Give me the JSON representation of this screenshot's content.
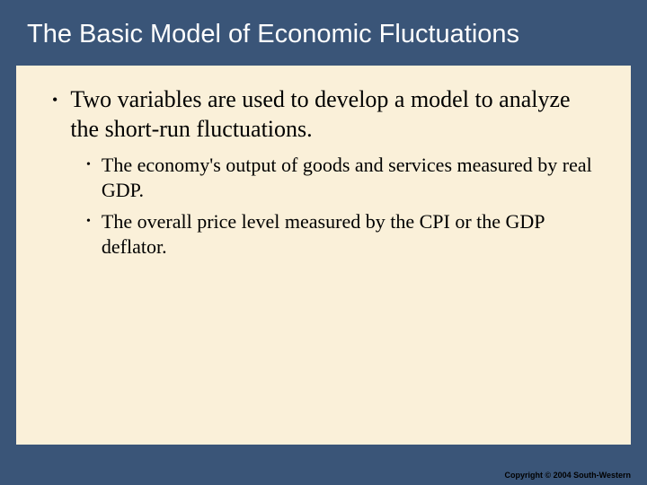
{
  "slide": {
    "title": "The Basic Model of Economic Fluctuations",
    "background_color": "#3a5578",
    "content_background": "#faf0d9",
    "title_color": "#ffffff",
    "title_fontsize": 29,
    "text_color": "#000000",
    "bullets": {
      "level1": [
        {
          "text": "Two variables are used to develop a model to analyze the short-run fluctuations.",
          "fontsize": 26
        }
      ],
      "level2": [
        {
          "text": "The economy's output of goods and services measured by real GDP.",
          "fontsize": 22
        },
        {
          "text": "The overall price level measured by the CPI or the GDP deflator.",
          "fontsize": 22
        }
      ]
    }
  },
  "copyright": "Copyright © 2004  South-Western"
}
